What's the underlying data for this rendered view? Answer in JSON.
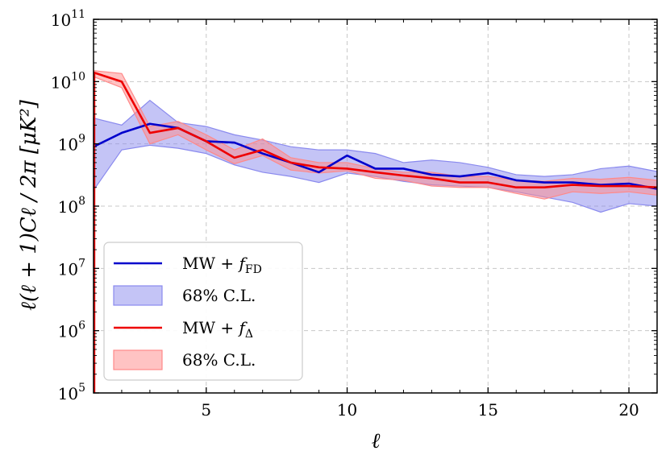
{
  "chart_data": {
    "type": "line",
    "xlabel": "ℓ",
    "ylabel": "ℓ(ℓ + 1)Cℓ / 2π [μK²]",
    "xlim": [
      1,
      21
    ],
    "ylim_log10": [
      5,
      11
    ],
    "yscale": "log",
    "grid": true,
    "legend_position": "lower-left",
    "x_ticks": [
      5,
      10,
      15,
      20
    ],
    "x_tick_labels": [
      "5",
      "10",
      "15",
      "20"
    ],
    "y_ticks_log10": [
      5,
      6,
      7,
      8,
      9,
      10,
      11
    ],
    "y_tick_base": "10",
    "y_tick_exponents": [
      "5",
      "6",
      "7",
      "8",
      "9",
      "10",
      "11"
    ],
    "x": [
      1,
      2,
      3,
      4,
      5,
      6,
      7,
      8,
      9,
      10,
      11,
      12,
      13,
      14,
      15,
      16,
      17,
      18,
      19,
      20,
      21
    ],
    "series": [
      {
        "name": "MW + f_FD",
        "legend_main": "MW + ",
        "legend_sym": "f",
        "legend_sub": "FD",
        "color": "#0000cc",
        "values": [
          900000000.0,
          1500000000.0,
          2100000000.0,
          1800000000.0,
          1100000000.0,
          1050000000.0,
          700000000.0,
          500000000.0,
          350000000.0,
          650000000.0,
          400000000.0,
          400000000.0,
          320000000.0,
          300000000.0,
          340000000.0,
          260000000.0,
          240000000.0,
          240000000.0,
          220000000.0,
          230000000.0,
          190000000.0
        ],
        "band_lower": [
          180000000.0,
          800000000.0,
          950000000.0,
          850000000.0,
          700000000.0,
          460000000.0,
          350000000.0,
          300000000.0,
          240000000.0,
          340000000.0,
          300000000.0,
          250000000.0,
          220000000.0,
          210000000.0,
          200000000.0,
          170000000.0,
          140000000.0,
          115000000.0,
          80000000.0,
          110000000.0,
          100000000.0
        ],
        "band_upper": [
          2600000000.0,
          2000000000.0,
          5000000000.0,
          2200000000.0,
          1900000000.0,
          1400000000.0,
          1150000000.0,
          900000000.0,
          800000000.0,
          800000000.0,
          700000000.0,
          500000000.0,
          550000000.0,
          500000000.0,
          420000000.0,
          320000000.0,
          300000000.0,
          320000000.0,
          400000000.0,
          440000000.0,
          360000000.0
        ],
        "band_color": "#8a8aee",
        "band_label": "68% C.L."
      },
      {
        "name": "MW + f_Δ",
        "legend_main": "MW + ",
        "legend_sym": "f",
        "legend_sub": "Δ",
        "color": "#ee0000",
        "values": [
          14000000000.0,
          10000000000.0,
          1500000000.0,
          1800000000.0,
          1100000000.0,
          600000000.0,
          800000000.0,
          500000000.0,
          420000000.0,
          400000000.0,
          350000000.0,
          310000000.0,
          280000000.0,
          240000000.0,
          240000000.0,
          200000000.0,
          200000000.0,
          220000000.0,
          210000000.0,
          210000000.0,
          200000000.0
        ],
        "band_lower": [
          12000000000.0,
          8000000000.0,
          1000000000.0,
          1400000000.0,
          800000000.0,
          480000000.0,
          650000000.0,
          380000000.0,
          340000000.0,
          370000000.0,
          280000000.0,
          260000000.0,
          210000000.0,
          200000000.0,
          200000000.0,
          160000000.0,
          130000000.0,
          170000000.0,
          160000000.0,
          170000000.0,
          150000000.0
        ],
        "band_upper": [
          15000000000.0,
          13500000000.0,
          1900000000.0,
          2300000000.0,
          1400000000.0,
          800000000.0,
          1200000000.0,
          600000000.0,
          500000000.0,
          500000000.0,
          400000000.0,
          350000000.0,
          350000000.0,
          300000000.0,
          300000000.0,
          260000000.0,
          250000000.0,
          280000000.0,
          270000000.0,
          290000000.0,
          260000000.0
        ],
        "band_color": "#ff8888",
        "band_label": "68% C.L."
      }
    ]
  }
}
